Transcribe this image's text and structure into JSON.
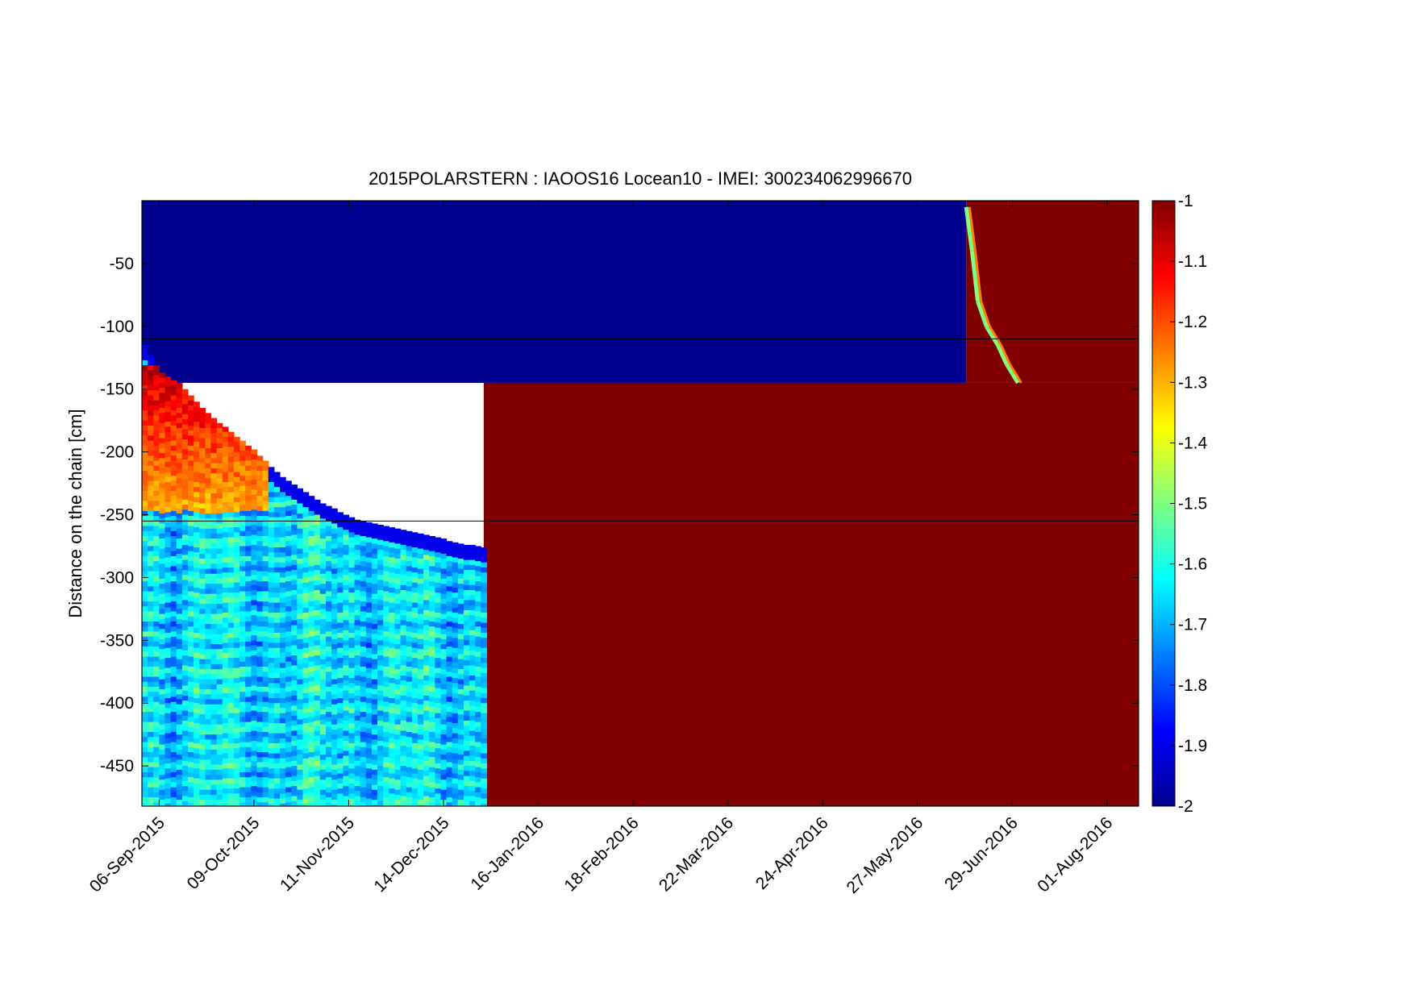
{
  "chart_data": {
    "type": "heatmap",
    "title": "2015POLARSTERN : IAOOS16  Locean10 - IMEI: 300234062996670",
    "xlabel": "",
    "ylabel": "Distance on the chain [cm]",
    "x_axis": {
      "type": "date",
      "range": [
        "2015-08-31",
        "2016-08-12"
      ],
      "ticks": [
        {
          "value": "2015-09-06",
          "label": "06-Sep-2015"
        },
        {
          "value": "2015-10-09",
          "label": "09-Oct-2015"
        },
        {
          "value": "2015-11-11",
          "label": "11-Nov-2015"
        },
        {
          "value": "2015-12-14",
          "label": "14-Dec-2015"
        },
        {
          "value": "2016-01-16",
          "label": "16-Jan-2016"
        },
        {
          "value": "2016-02-18",
          "label": "18-Feb-2016"
        },
        {
          "value": "2016-03-22",
          "label": "22-Mar-2016"
        },
        {
          "value": "2016-04-24",
          "label": "24-Apr-2016"
        },
        {
          "value": "2016-05-27",
          "label": "27-May-2016"
        },
        {
          "value": "2016-06-29",
          "label": "29-Jun-2016"
        },
        {
          "value": "2016-08-01",
          "label": "01-Aug-2016"
        }
      ]
    },
    "y_axis": {
      "range": [
        -482,
        0
      ],
      "ticks": [
        {
          "value": -50,
          "label": "-50"
        },
        {
          "value": -100,
          "label": "-100"
        },
        {
          "value": -150,
          "label": "-150"
        },
        {
          "value": -200,
          "label": "-200"
        },
        {
          "value": -250,
          "label": "-250"
        },
        {
          "value": -300,
          "label": "-300"
        },
        {
          "value": -350,
          "label": "-350"
        },
        {
          "value": -400,
          "label": "-400"
        },
        {
          "value": -450,
          "label": "-450"
        }
      ]
    },
    "colorbar": {
      "colormap": "jet",
      "range": [
        -2,
        -1
      ],
      "ticks": [
        {
          "value": -1,
          "label": "-1"
        },
        {
          "value": -1.1,
          "label": "-1.1"
        },
        {
          "value": -1.2,
          "label": "-1.2"
        },
        {
          "value": -1.3,
          "label": "-1.3"
        },
        {
          "value": -1.4,
          "label": "-1.4"
        },
        {
          "value": -1.5,
          "label": "-1.5"
        },
        {
          "value": -1.6,
          "label": "-1.6"
        },
        {
          "value": -1.7,
          "label": "-1.7"
        },
        {
          "value": -1.8,
          "label": "-1.8"
        },
        {
          "value": -1.9,
          "label": "-1.9"
        },
        {
          "value": -2,
          "label": "-2"
        }
      ]
    },
    "horizontal_lines": [
      -110,
      -255
    ],
    "regions": [
      {
        "description": "saturated high values (>= -1) after data gap, lower section",
        "x_start": "2015-12-28",
        "x_end": "2016-08-12",
        "y_top": -145,
        "y_bottom": -482,
        "value": -1
      },
      {
        "description": "saturated high values upper section after mid-June",
        "x_start": "2016-06-13",
        "x_end": "2016-08-12",
        "y_top": 0,
        "y_bottom": -145,
        "value": -1
      },
      {
        "description": "cold upper section",
        "x_start": "2015-08-31",
        "x_end": "2016-06-13",
        "y_top": 0,
        "y_bottom": -145,
        "value": -2
      }
    ],
    "interfaces": {
      "ice_bottom_boundary": [
        {
          "date": "2015-08-31",
          "depth": -115
        },
        {
          "date": "2015-09-05",
          "depth": -135
        },
        {
          "date": "2015-09-12",
          "depth": -145
        },
        {
          "date": "2015-09-20",
          "depth": -165
        },
        {
          "date": "2015-09-28",
          "depth": -180
        },
        {
          "date": "2015-10-08",
          "depth": -198
        },
        {
          "date": "2015-10-18",
          "depth": -220
        },
        {
          "date": "2015-10-30",
          "depth": -238
        },
        {
          "date": "2015-11-11",
          "depth": -252
        },
        {
          "date": "2015-11-25",
          "depth": -260
        },
        {
          "date": "2015-12-08",
          "depth": -266
        },
        {
          "date": "2015-12-18",
          "depth": -272
        },
        {
          "date": "2015-12-28",
          "depth": -276
        }
      ],
      "melt_front": [
        {
          "date": "2016-06-13",
          "depth": -5
        },
        {
          "date": "2016-06-15",
          "depth": -40
        },
        {
          "date": "2016-06-17",
          "depth": -80
        },
        {
          "date": "2016-06-20",
          "depth": -100
        },
        {
          "date": "2016-06-24",
          "depth": -115
        },
        {
          "date": "2016-06-27",
          "depth": -130
        },
        {
          "date": "2016-07-01",
          "depth": -145
        }
      ]
    },
    "water_values_range": [
      -1.85,
      -1.45
    ],
    "warm_ice_patch": {
      "date_range": [
        "2015-08-31",
        "2015-10-12"
      ],
      "depth_range": [
        -130,
        -245
      ],
      "values_range": [
        -1.4,
        -1.0
      ]
    }
  }
}
